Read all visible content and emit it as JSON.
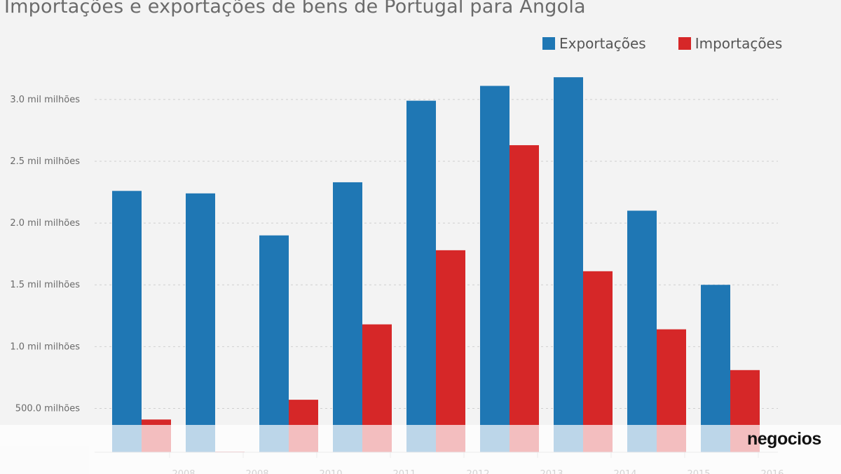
{
  "chart_data": {
    "type": "bar",
    "title": "Importações e exportações de bens de Portugal para Angola",
    "categories": [
      "2008",
      "2008",
      "2010",
      "2011",
      "2012",
      "2013",
      "2014",
      "2015",
      "2016"
    ],
    "series": [
      {
        "name": "Exportações",
        "color": "#1f77b4",
        "values": [
          2.26,
          2.24,
          1.9,
          2.33,
          2.99,
          3.11,
          3.18,
          2.1,
          1.5
        ]
      },
      {
        "name": "Importações",
        "color": "#d62728",
        "values": [
          0.41,
          0.01,
          0.57,
          1.18,
          1.78,
          2.63,
          1.61,
          1.14,
          0.81
        ]
      }
    ],
    "yticks": [
      {
        "value": 0.5,
        "label": "500.0 milhões"
      },
      {
        "value": 1.0,
        "label": "1.0 mil milhões"
      },
      {
        "value": 1.5,
        "label": "1.5 mil milhões"
      },
      {
        "value": 2.0,
        "label": "2.0 mil milhões"
      },
      {
        "value": 2.5,
        "label": "2.5 mil milhões"
      },
      {
        "value": 3.0,
        "label": "3.0 mil milhões"
      }
    ],
    "ylim": [
      0.145,
      3.3
    ],
    "grid": true,
    "legend_position": "top-right"
  },
  "brand": {
    "logo_text": "negocios"
  }
}
